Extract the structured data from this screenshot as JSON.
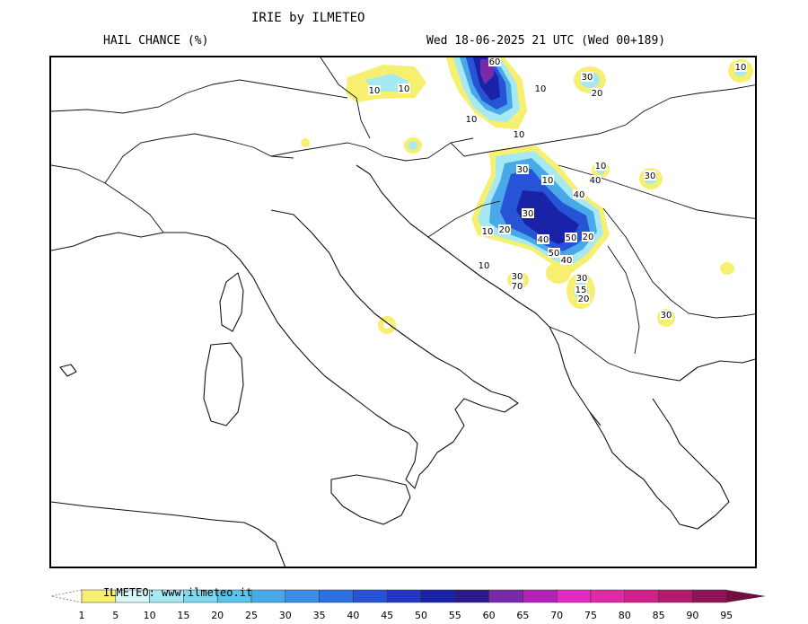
{
  "header": {
    "title": "IRIE by ILMETEO",
    "subtitle": "HAIL CHANCE (%)",
    "timestamp": "Wed 18-06-2025 21 UTC (Wed 00+189)"
  },
  "map": {
    "region": "Italy and Balkans",
    "contour_labels": [
      "10",
      "10",
      "10",
      "60",
      "10",
      "10",
      "30",
      "20",
      "10",
      "10",
      "30",
      "30",
      "40",
      "10",
      "40",
      "30",
      "10",
      "20",
      "40",
      "50",
      "50",
      "20",
      "40",
      "10",
      "30",
      "70",
      "30",
      "15",
      "20",
      "30"
    ]
  },
  "legend": {
    "watermark": "ILMETEO: www.ilmeteo.it",
    "ticks": [
      "1",
      "5",
      "10",
      "15",
      "20",
      "25",
      "30",
      "35",
      "40",
      "45",
      "50",
      "55",
      "60",
      "65",
      "70",
      "75",
      "80",
      "85",
      "90",
      "95"
    ],
    "colors": [
      "#f7ef70",
      "#d8f6f8",
      "#a6e9f3",
      "#7ed8ee",
      "#5cc3ea",
      "#49a9e8",
      "#3a8ee5",
      "#2d6fe0",
      "#2753d6",
      "#2238c4",
      "#1a22a8",
      "#2b1a8c",
      "#7a2aa8",
      "#b322b8",
      "#e22ac2",
      "#e02aa6",
      "#d0208c",
      "#b21a70",
      "#8e1456",
      "#6e0f40"
    ]
  }
}
